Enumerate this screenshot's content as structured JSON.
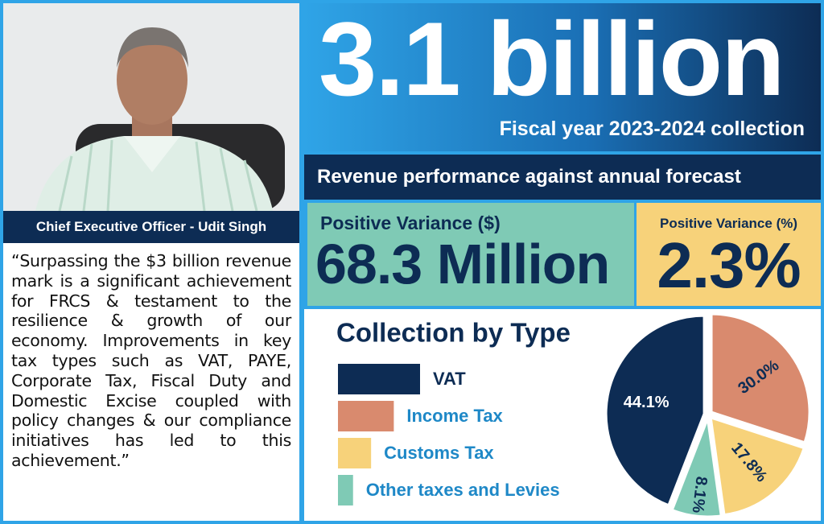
{
  "profile": {
    "caption": "Chief Executive Officer - Udit Singh",
    "quote": "“Surpassing the $3 billion revenue mark is a significant achievement for FRCS & testament to the resilience & growth of our economy. Improvements in key tax types such as VAT, PAYE, Corporate Tax, Fiscal Duty and Domestic Excise coupled with policy changes & our compliance initiatives has led to this achievement.”"
  },
  "headline": {
    "amount": "3.1 billion",
    "subtitle": "Fiscal year 2023-2024 collection"
  },
  "banner": "Revenue performance against annual forecast",
  "variance": {
    "dollar_label": "Positive Variance ($)",
    "dollar_value": "68.3 Million",
    "percent_label": "Positive Variance (%)",
    "percent_value": "2.3%"
  },
  "chart_data": {
    "type": "pie",
    "title": "Collection by Type",
    "categories": [
      "VAT",
      "Income Tax",
      "Customs Tax",
      "Other taxes and Levies"
    ],
    "values": [
      44.1,
      30.0,
      17.8,
      8.1
    ],
    "value_labels": [
      "44.1%",
      "30.0%",
      "17.8%",
      "8.1%"
    ],
    "colors": [
      "#0d2c54",
      "#d98a6e",
      "#f7d27a",
      "#7fcab5"
    ]
  }
}
